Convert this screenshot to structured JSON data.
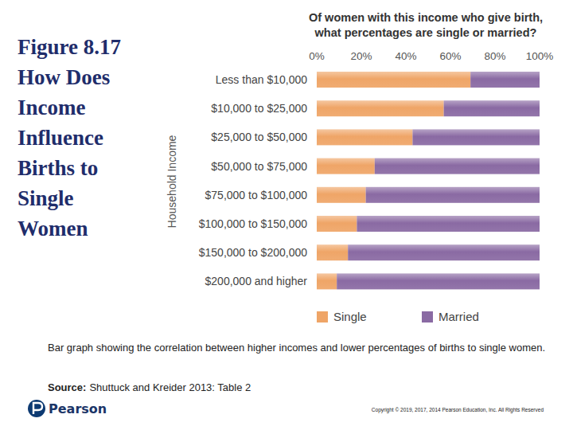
{
  "slide": {
    "title": "Figure 8.17 How Does Income Influence Births to Single Women",
    "caption": "Bar graph showing the correlation between higher incomes and lower percentages of births to single women.",
    "source_label": "Source:",
    "source": "Shuttuck and Kreider 2013: Table 2",
    "copyright": "Copyright © 2019, 2017, 2014 Pearson Education, Inc. All Rights Reserved",
    "logo": "Pearson"
  },
  "chart_data": {
    "type": "bar",
    "title": "Of women with this income who give birth, what percentages are single or married?",
    "ylabel": "Household Income",
    "orientation": "horizontal",
    "stacked": true,
    "grid": false,
    "legend": "bottom",
    "categories": [
      "Less than $10,000",
      "$10,000 to $25,000",
      "$25,000 to $50,000",
      "$50,000 to $75,000",
      "$75,000 to $100,000",
      "$100,000 to $150,000",
      "$150,000 to $200,000",
      "$200,000 and higher"
    ],
    "series": [
      {
        "name": "Single",
        "color": "#efa567",
        "values": [
          69,
          57,
          43,
          26,
          22,
          18,
          14,
          9
        ]
      },
      {
        "name": "Married",
        "color": "#8a6aa3",
        "values": [
          31,
          43,
          57,
          74,
          78,
          82,
          86,
          91
        ]
      }
    ],
    "xlim": [
      0,
      100
    ],
    "xticks": [
      {
        "value": 0,
        "label": "0%"
      },
      {
        "value": 20,
        "label": "20%"
      },
      {
        "value": 40,
        "label": "40%"
      },
      {
        "value": 60,
        "label": "60%"
      },
      {
        "value": 80,
        "label": "80%"
      },
      {
        "value": 100,
        "label": "100%"
      }
    ]
  }
}
